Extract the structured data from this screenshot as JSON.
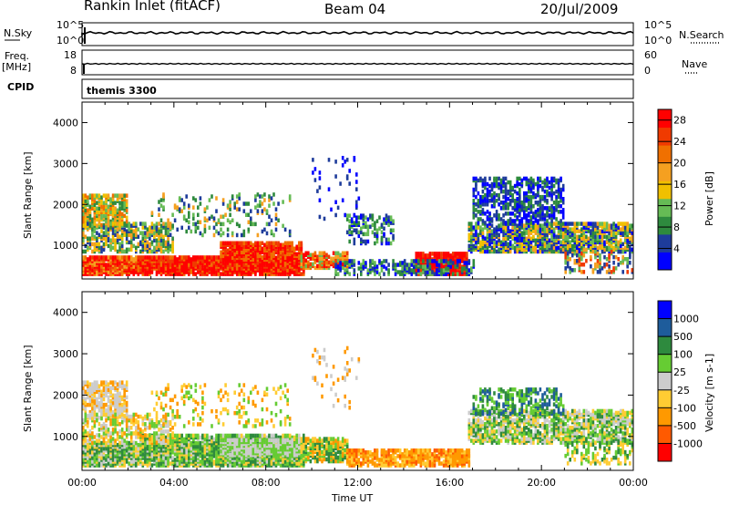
{
  "header": {
    "station": "Rankin Inlet (fitACF)",
    "beam": "Beam 04",
    "date": "20/Jul/2009"
  },
  "top_panels": {
    "nsky_label": "N.Sky",
    "nsearch_label": "N.Search",
    "nsky_ticks": [
      "10^5",
      "10^0"
    ],
    "nsearch_ticks": [
      "10^5",
      "10^0"
    ],
    "freq_label": "Freq.",
    "freq_unit": "[MHz]",
    "freq_ticks": [
      "18",
      "8"
    ],
    "nave_label": "Nave",
    "nave_ticks": [
      "60",
      "0"
    ],
    "cpid_label": "CPID",
    "cpid_value": "themis 3300"
  },
  "colors": {
    "power_scale": [
      "#0000ff",
      "#1e3c9b",
      "#2e8a3e",
      "#66bb55",
      "#f0c000",
      "#f5a020",
      "#f07000",
      "#f03a00",
      "#ff0000"
    ],
    "velocity_scale": [
      "#ff0000",
      "#ff5a00",
      "#ff9900",
      "#ffcc33",
      "#cccccc",
      "#66cc33",
      "#2e8a3e",
      "#1e5c9b",
      "#0000ff"
    ]
  },
  "chart_data": [
    {
      "type": "heatmap",
      "name": "power",
      "ylabel": "Slant Range [km]",
      "xlabel": "Time UT",
      "x_ticks": [
        "00:00",
        "04:00",
        "08:00",
        "12:00",
        "16:00",
        "20:00",
        "00:00"
      ],
      "y_ticks": [
        "1000",
        "2000",
        "3000",
        "4000"
      ],
      "ylim": [
        180,
        4500
      ],
      "xlim_hours": [
        0,
        24
      ],
      "colorbar_label": "Power [dB]",
      "colorbar_ticks": [
        "4",
        "8",
        "12",
        "16",
        "20",
        "24",
        "28"
      ],
      "clim": [
        0,
        30
      ]
    },
    {
      "type": "heatmap",
      "name": "velocity",
      "ylabel": "Slant Range [km]",
      "xlabel": "Time UT",
      "x_ticks": [
        "00:00",
        "04:00",
        "08:00",
        "12:00",
        "16:00",
        "20:00",
        "00:00"
      ],
      "y_ticks": [
        "1000",
        "2000",
        "3000",
        "4000"
      ],
      "ylim": [
        180,
        4500
      ],
      "xlim_hours": [
        0,
        24
      ],
      "colorbar_label": "Velocity [m s-1]",
      "colorbar_ticks": [
        "1000",
        "500",
        "100",
        "25",
        "-25",
        "-100",
        "-500",
        "-1000"
      ],
      "clim": [
        -1000,
        1000
      ]
    }
  ]
}
